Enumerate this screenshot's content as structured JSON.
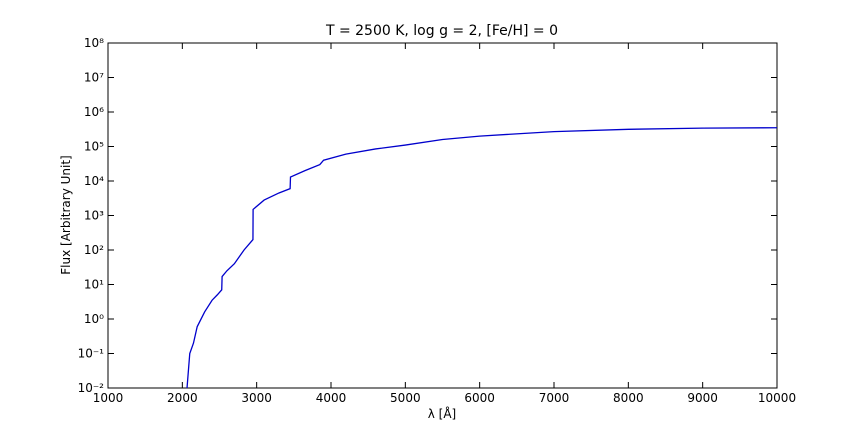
{
  "chart_data": {
    "type": "line",
    "title": "T = 2500 K, log g = 2, [Fe/H] = 0",
    "x_label": "λ [Å]",
    "y_label": "Flux [Arbitrary Unit]",
    "log_y": true,
    "x": [
      2063,
      2100,
      2150,
      2200,
      2300,
      2400,
      2470,
      2530,
      2535,
      2600,
      2700,
      2830,
      2950,
      2952,
      3100,
      3300,
      3450,
      3455,
      3650,
      3850,
      3900,
      4200,
      4600,
      5000,
      5500,
      6000,
      7000,
      8000,
      9000,
      10000
    ],
    "series": [
      {
        "name": "flux",
        "color": "#0000cc",
        "values": [
          0.01,
          0.1,
          0.2,
          0.6,
          1.6,
          3.5,
          5,
          7,
          17,
          25,
          40,
          100,
          200,
          1500,
          2800,
          4500,
          6000,
          13000,
          20000,
          30000,
          40000,
          60000,
          85000,
          110000,
          160000,
          200000,
          270000,
          315000,
          340000,
          350000
        ]
      }
    ],
    "xlim": [
      1000,
      10000
    ],
    "xticks": [
      1000,
      2000,
      3000,
      4000,
      5000,
      6000,
      7000,
      8000,
      9000,
      10000
    ],
    "ylim": [
      0.01,
      100000000
    ],
    "yticks": [
      {
        "value": 0.01,
        "label": "10⁻²"
      },
      {
        "value": 0.1,
        "label": "10⁻¹"
      },
      {
        "value": 1,
        "label": "10⁰"
      },
      {
        "value": 10,
        "label": "10¹"
      },
      {
        "value": 100,
        "label": "10²"
      },
      {
        "value": 1000,
        "label": "10³"
      },
      {
        "value": 10000,
        "label": "10⁴"
      },
      {
        "value": 100000,
        "label": "10⁵"
      },
      {
        "value": 1000000,
        "label": "10⁶"
      },
      {
        "value": 10000000,
        "label": "10⁷"
      },
      {
        "value": 100000000,
        "label": "10⁸"
      }
    ]
  }
}
